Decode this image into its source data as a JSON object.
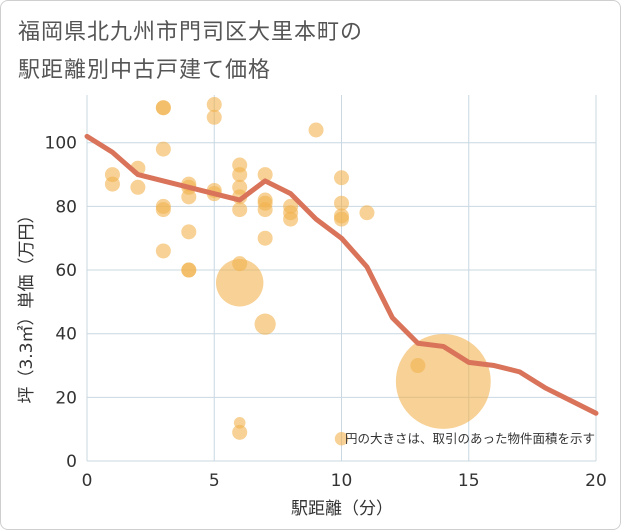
{
  "title_lines": [
    "福岡県北九州市門司区大里本町の",
    "駅距離別中古戸建て価格"
  ],
  "colors": {
    "bubble": "#f2b24e",
    "line": "#d9735a",
    "grid": "#c9d8e2"
  },
  "chart_data": {
    "type": "scatter",
    "xlabel": "駅距離（分）",
    "ylabel": "坪（3.3㎡）単価（万円）",
    "xlim": [
      0,
      20
    ],
    "ylim": [
      0,
      115
    ],
    "xticks": [
      0,
      5,
      10,
      15,
      20
    ],
    "yticks": [
      0,
      20,
      40,
      60,
      80,
      100
    ],
    "grid": true,
    "note": "円の大きさは、取引のあった物件面積を示す",
    "bubbles": [
      {
        "x": 1,
        "y": 90,
        "s": 1
      },
      {
        "x": 1,
        "y": 87,
        "s": 1
      },
      {
        "x": 2,
        "y": 92,
        "s": 1
      },
      {
        "x": 2,
        "y": 86,
        "s": 1
      },
      {
        "x": 3,
        "y": 111,
        "s": 1
      },
      {
        "x": 3,
        "y": 111,
        "s": 1
      },
      {
        "x": 3,
        "y": 98,
        "s": 1
      },
      {
        "x": 3,
        "y": 80,
        "s": 1
      },
      {
        "x": 3,
        "y": 79,
        "s": 1
      },
      {
        "x": 3,
        "y": 66,
        "s": 1
      },
      {
        "x": 4,
        "y": 87,
        "s": 1
      },
      {
        "x": 4,
        "y": 86,
        "s": 1
      },
      {
        "x": 4,
        "y": 83,
        "s": 1
      },
      {
        "x": 4,
        "y": 72,
        "s": 1
      },
      {
        "x": 4,
        "y": 60,
        "s": 1
      },
      {
        "x": 4,
        "y": 60,
        "s": 1
      },
      {
        "x": 5,
        "y": 112,
        "s": 1
      },
      {
        "x": 5,
        "y": 108,
        "s": 1
      },
      {
        "x": 5,
        "y": 85,
        "s": 1
      },
      {
        "x": 5,
        "y": 84,
        "s": 1
      },
      {
        "x": 6,
        "y": 93,
        "s": 1
      },
      {
        "x": 6,
        "y": 90,
        "s": 1
      },
      {
        "x": 6,
        "y": 86,
        "s": 1
      },
      {
        "x": 6,
        "y": 83,
        "s": 1
      },
      {
        "x": 6,
        "y": 79,
        "s": 1
      },
      {
        "x": 6,
        "y": 62,
        "s": 1
      },
      {
        "x": 6,
        "y": 56,
        "s": 10
      },
      {
        "x": 6,
        "y": 12,
        "s": 0.6
      },
      {
        "x": 6,
        "y": 9,
        "s": 1
      },
      {
        "x": 7,
        "y": 90,
        "s": 1
      },
      {
        "x": 7,
        "y": 82,
        "s": 1
      },
      {
        "x": 7,
        "y": 81,
        "s": 1
      },
      {
        "x": 7,
        "y": 79,
        "s": 1
      },
      {
        "x": 7,
        "y": 70,
        "s": 1
      },
      {
        "x": 7,
        "y": 43,
        "s": 2
      },
      {
        "x": 8,
        "y": 80,
        "s": 1
      },
      {
        "x": 8,
        "y": 78,
        "s": 1
      },
      {
        "x": 8,
        "y": 76,
        "s": 1
      },
      {
        "x": 9,
        "y": 104,
        "s": 1
      },
      {
        "x": 10,
        "y": 89,
        "s": 1
      },
      {
        "x": 10,
        "y": 81,
        "s": 1
      },
      {
        "x": 10,
        "y": 77,
        "s": 1
      },
      {
        "x": 10,
        "y": 76,
        "s": 1
      },
      {
        "x": 10,
        "y": 7,
        "s": 0.8
      },
      {
        "x": 11,
        "y": 78,
        "s": 1
      },
      {
        "x": 13,
        "y": 30,
        "s": 1
      },
      {
        "x": 14,
        "y": 25,
        "s": 40
      }
    ],
    "series": [
      {
        "x": [
          0,
          1,
          2,
          3,
          4,
          5,
          6,
          7,
          8,
          9,
          10,
          11,
          12,
          13,
          14,
          15,
          16,
          17,
          18,
          19,
          20
        ],
        "values": [
          102,
          97,
          90,
          88,
          86,
          84,
          82,
          88,
          84,
          76,
          70,
          61,
          45,
          37,
          36,
          31,
          30,
          28,
          23,
          19,
          15
        ]
      }
    ]
  }
}
